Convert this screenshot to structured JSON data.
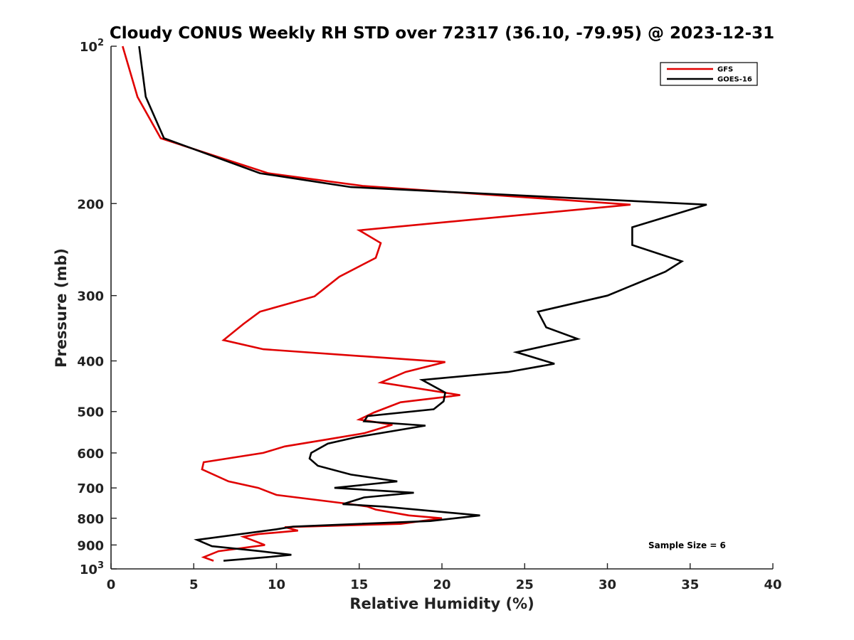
{
  "chart_data": {
    "type": "line",
    "title": "Cloudy CONUS Weekly RH STD over 72317 (36.10, -79.95) @ 2023-12-31",
    "xlabel": "Relative Humidity (%)",
    "ylabel": "Pressure (mb)",
    "xlim": [
      0,
      40
    ],
    "ylim": [
      100,
      1000
    ],
    "y_scale": "log",
    "y_reversed": true,
    "x_ticks": [
      "0",
      "5",
      "10",
      "15",
      "20",
      "25",
      "30",
      "35",
      "40"
    ],
    "y_ticks": [
      {
        "value": 100,
        "base": "10",
        "exp": "2"
      },
      {
        "value": 200,
        "label": "200"
      },
      {
        "value": 300,
        "label": "300"
      },
      {
        "value": 400,
        "label": "400"
      },
      {
        "value": 500,
        "label": "500"
      },
      {
        "value": 600,
        "label": "600"
      },
      {
        "value": 700,
        "label": "700"
      },
      {
        "value": 800,
        "label": "800"
      },
      {
        "value": 900,
        "label": "900"
      },
      {
        "value": 1000,
        "base": "10",
        "exp": "3"
      }
    ],
    "legend_position": "top-right",
    "grid": false,
    "annotation": "Sample Size = 6",
    "series": [
      {
        "name": "GFS",
        "color": "#e00000",
        "points": [
          [
            0.7,
            100
          ],
          [
            1.6,
            125
          ],
          [
            3.0,
            150
          ],
          [
            9.5,
            175
          ],
          [
            15.2,
            185
          ],
          [
            31.4,
            201
          ],
          [
            15.0,
            225
          ],
          [
            16.3,
            238
          ],
          [
            16.0,
            254
          ],
          [
            13.8,
            276
          ],
          [
            12.3,
            301
          ],
          [
            9.0,
            322
          ],
          [
            8.0,
            340
          ],
          [
            6.8,
            365
          ],
          [
            9.2,
            380
          ],
          [
            20.2,
            402
          ],
          [
            17.8,
            420
          ],
          [
            16.3,
            440
          ],
          [
            21.1,
            465
          ],
          [
            17.5,
            480
          ],
          [
            15.9,
            502
          ],
          [
            15.0,
            518
          ],
          [
            17.0,
            530
          ],
          [
            15.3,
            550
          ],
          [
            13.1,
            565
          ],
          [
            10.5,
            583
          ],
          [
            9.2,
            600
          ],
          [
            5.6,
            625
          ],
          [
            5.5,
            645
          ],
          [
            7.1,
            680
          ],
          [
            8.9,
            700
          ],
          [
            10.0,
            722
          ],
          [
            14.5,
            752
          ],
          [
            15.5,
            760
          ],
          [
            16.0,
            770
          ],
          [
            18.0,
            790
          ],
          [
            20.0,
            800
          ],
          [
            17.5,
            820
          ],
          [
            10.5,
            832
          ],
          [
            11.3,
            845
          ],
          [
            8.9,
            858
          ],
          [
            8.0,
            868
          ],
          [
            8.5,
            880
          ],
          [
            9.3,
            900
          ],
          [
            6.5,
            925
          ],
          [
            5.6,
            950
          ],
          [
            6.2,
            965
          ]
        ]
      },
      {
        "name": "GOES-16",
        "color": "#000000",
        "points": [
          [
            1.7,
            100
          ],
          [
            2.1,
            125
          ],
          [
            3.2,
            150
          ],
          [
            9.0,
            175
          ],
          [
            14.5,
            186
          ],
          [
            36.0,
            201
          ],
          [
            31.5,
            222
          ],
          [
            31.5,
            240
          ],
          [
            34.5,
            258
          ],
          [
            33.5,
            270
          ],
          [
            30.0,
            300
          ],
          [
            25.8,
            322
          ],
          [
            26.3,
            345
          ],
          [
            28.2,
            363
          ],
          [
            24.5,
            385
          ],
          [
            26.8,
            405
          ],
          [
            24.0,
            420
          ],
          [
            18.8,
            435
          ],
          [
            20.2,
            460
          ],
          [
            20.1,
            478
          ],
          [
            19.5,
            495
          ],
          [
            15.5,
            510
          ],
          [
            15.3,
            522
          ],
          [
            19.0,
            532
          ],
          [
            14.8,
            560
          ],
          [
            13.1,
            576
          ],
          [
            12.1,
            600
          ],
          [
            12.0,
            615
          ],
          [
            12.5,
            635
          ],
          [
            14.5,
            660
          ],
          [
            17.3,
            680
          ],
          [
            13.5,
            700
          ],
          [
            18.3,
            715
          ],
          [
            15.3,
            730
          ],
          [
            14.0,
            752
          ],
          [
            16.5,
            760
          ],
          [
            22.3,
            790
          ],
          [
            19.3,
            810
          ],
          [
            11.0,
            830
          ],
          [
            10.0,
            840
          ],
          [
            5.2,
            880
          ],
          [
            6.1,
            905
          ],
          [
            9.0,
            925
          ],
          [
            10.9,
            940
          ],
          [
            9.4,
            950
          ],
          [
            6.8,
            965
          ]
        ]
      }
    ]
  }
}
